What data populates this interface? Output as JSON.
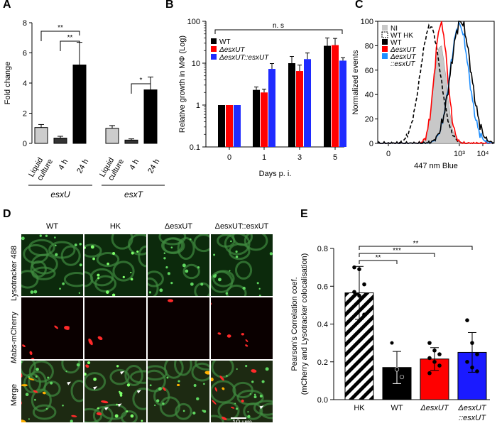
{
  "panels": {
    "A": {
      "letter": "A",
      "chart_data": {
        "type": "bar",
        "ylabel": "Fold change",
        "ylim": [
          0,
          8
        ],
        "yticks": [
          "0",
          "2",
          "4",
          "6",
          "8"
        ],
        "categories": [
          "Liquid culture",
          "4 h",
          "24 h",
          "Liquid culture",
          "4 h",
          "24 h"
        ],
        "groups": [
          "esxU",
          "esxT"
        ],
        "values": [
          1.05,
          0.35,
          5.2,
          1.0,
          0.22,
          3.55
        ],
        "errors": [
          0.2,
          0.12,
          1.5,
          0.18,
          0.08,
          0.85
        ],
        "colors": [
          "#cccccc",
          "#333333",
          "#000000",
          "#cccccc",
          "#333333",
          "#000000"
        ],
        "significance": [
          "**",
          "**",
          "*"
        ]
      },
      "tick_labels": [
        "Liquid",
        "culture",
        "4 h",
        "24 h",
        "Liquid",
        "culture",
        "4 h",
        "24 h"
      ]
    },
    "B": {
      "letter": "B",
      "chart_data": {
        "type": "bar",
        "scale": "log",
        "ylabel": "Relative growth in MΦ (Log)",
        "xlabel": "Days p. i.",
        "ylim": [
          0.1,
          100
        ],
        "yticks": [
          "0.1",
          "1",
          "10",
          "100"
        ],
        "categories": [
          "0",
          "1",
          "3",
          "5"
        ],
        "series": [
          {
            "name": "WT",
            "color": "#000000",
            "values": [
              1,
              2.3,
              10,
              26
            ],
            "errors": [
              0,
              0.4,
              4.5,
              14
            ]
          },
          {
            "name": "ΔesxUT",
            "color": "#ff0000",
            "values": [
              1,
              2.0,
              6.5,
              27
            ],
            "errors": [
              0,
              0.4,
              2.5,
              12
            ]
          },
          {
            "name": "ΔesxUT::esxUT",
            "color": "#1f2bff",
            "values": [
              1,
              7.3,
              12.5,
              11.5
            ],
            "errors": [
              0,
              2.5,
              5,
              2
            ]
          }
        ],
        "annotation": "n. s"
      }
    },
    "C": {
      "letter": "C",
      "chart_data": {
        "type": "line",
        "ylabel": "Normalized events",
        "xlabel": "447 nm Blue",
        "ylim": [
          0,
          100
        ],
        "yticks": [
          "0",
          "20",
          "40",
          "60",
          "80",
          "100"
        ],
        "xticks": [
          "0",
          "10³",
          "10⁴"
        ],
        "legend": [
          {
            "label": "NI",
            "color": "#c8c8c8",
            "style": "fill"
          },
          {
            "label": "WT HK",
            "color": "#000000",
            "style": "dashed"
          },
          {
            "label": "WT",
            "color": "#000000",
            "style": "solid"
          },
          {
            "label": "ΔesxUT",
            "color": "#ff0000",
            "style": "solid"
          },
          {
            "label": "ΔesxUT ::esxUT",
            "color": "#1f8fff",
            "style": "solid"
          }
        ]
      }
    },
    "D": {
      "letter": "D",
      "columns": [
        "WT",
        "HK",
        "ΔesxUT",
        "ΔesxUT::esxUT"
      ],
      "rows": [
        "Lysotracker 488",
        "Mabs-mCherry",
        "Merge"
      ],
      "scale_bar": "10 μm"
    },
    "E": {
      "letter": "E",
      "chart_data": {
        "type": "bar",
        "ylabel": "Pearson's Correlation coef.",
        "ylabel2": "(mCherry and Lysotracker colocalisation)",
        "ylim": [
          0,
          0.8
        ],
        "yticks": [
          "0.0",
          "0.2",
          "0.4",
          "0.6",
          "0.8"
        ],
        "categories": [
          "HK",
          "WT",
          "ΔesxUT",
          "ΔesxUT ::esxUT"
        ],
        "values": [
          0.565,
          0.17,
          0.215,
          0.25
        ],
        "errors": [
          0.14,
          0.085,
          0.06,
          0.105
        ],
        "colors": [
          "#ffffff",
          "#000000",
          "#ff0000",
          "#1a1aff"
        ],
        "points": [
          [
            0.7,
            0.69,
            0.61,
            0.57,
            0.55,
            0.45
          ],
          [
            0.3,
            0.16,
            0.12
          ],
          [
            0.3,
            0.26,
            0.24,
            0.22,
            0.2,
            0.18,
            0.14
          ],
          [
            0.42,
            0.3,
            0.24,
            0.2,
            0.17,
            0.15
          ]
        ],
        "significance": [
          "**",
          "***",
          "**"
        ]
      }
    }
  }
}
